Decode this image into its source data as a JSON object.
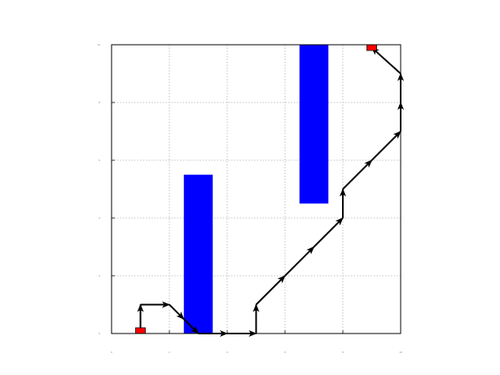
{
  "chart_data": {
    "type": "path-plot",
    "title": "",
    "xlabel": "",
    "ylabel": "",
    "xlim": [
      0,
      10
    ],
    "ylim": [
      0,
      10
    ],
    "xticks": [
      0,
      2,
      4,
      6,
      8,
      10
    ],
    "yticks": [
      0,
      2,
      4,
      6,
      8,
      10
    ],
    "grid": true,
    "obstacles": [
      {
        "x0": 2.5,
        "x1": 3.5,
        "y0": 0,
        "y1": 5.5,
        "color": "#0000ff"
      },
      {
        "x0": 6.5,
        "x1": 7.5,
        "y0": 4.5,
        "y1": 10,
        "color": "#0000ff"
      }
    ],
    "endpoints": [
      {
        "x": 1.0,
        "y": 0.1,
        "color": "#ff0000"
      },
      {
        "x": 9.0,
        "y": 9.9,
        "color": "#ff0000"
      }
    ],
    "path": {
      "color": "#000000",
      "points": [
        [
          1.0,
          0.1
        ],
        [
          1.0,
          1.0
        ],
        [
          2.0,
          1.0
        ],
        [
          2.5,
          0.5
        ],
        [
          3.0,
          0.0
        ],
        [
          4.0,
          0.0
        ],
        [
          5.0,
          0.0
        ],
        [
          5.0,
          1.0
        ],
        [
          6.0,
          2.0
        ],
        [
          7.0,
          3.0
        ],
        [
          8.0,
          4.0
        ],
        [
          8.0,
          5.0
        ],
        [
          9.0,
          6.0
        ],
        [
          10.0,
          7.0
        ],
        [
          10.0,
          8.0
        ],
        [
          10.0,
          9.0
        ],
        [
          9.0,
          9.9
        ]
      ]
    }
  }
}
